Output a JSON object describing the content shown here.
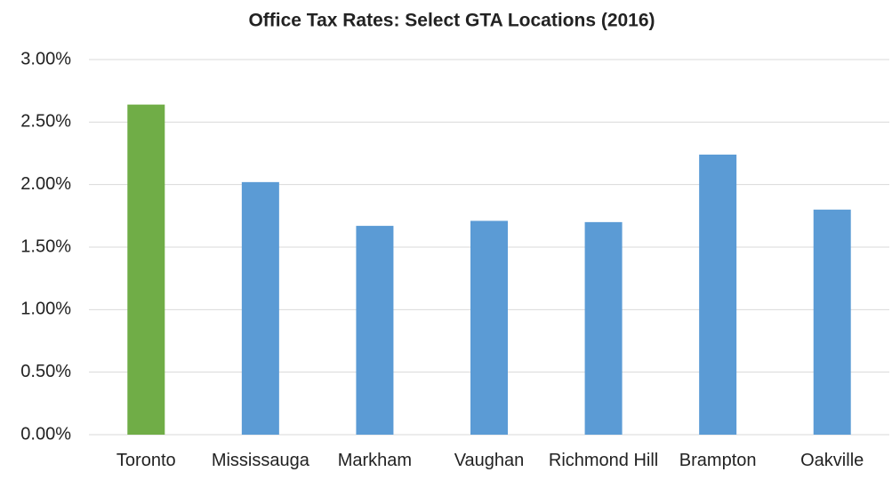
{
  "chart_data": {
    "type": "bar",
    "title": "Office Tax Rates: Select GTA Locations (2016)",
    "categories": [
      "Toronto",
      "Mississauga",
      "Markham",
      "Vaughan",
      "Richmond Hill",
      "Brampton",
      "Oakville"
    ],
    "values": [
      2.64,
      2.02,
      1.67,
      1.71,
      1.7,
      2.24,
      1.8
    ],
    "colors": [
      "#70ad47",
      "#5b9bd5",
      "#5b9bd5",
      "#5b9bd5",
      "#5b9bd5",
      "#5b9bd5",
      "#5b9bd5"
    ],
    "ylim": [
      0,
      3
    ],
    "yticks": [
      {
        "value": 0,
        "label": "0.00%"
      },
      {
        "value": 0.5,
        "label": "0.50%"
      },
      {
        "value": 1,
        "label": "1.00%"
      },
      {
        "value": 1.5,
        "label": "1.50%"
      },
      {
        "value": 2,
        "label": "2.00%"
      },
      {
        "value": 2.5,
        "label": "2.50%"
      },
      {
        "value": 3,
        "label": "3.00%"
      }
    ],
    "grid": true
  }
}
